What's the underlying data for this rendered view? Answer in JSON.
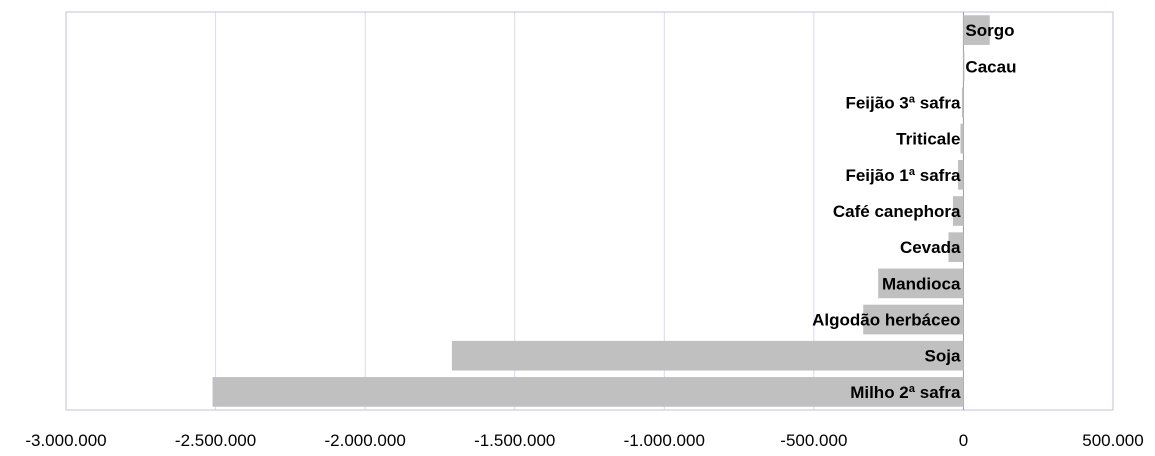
{
  "chart_data": {
    "type": "bar",
    "orientation": "horizontal",
    "title": "",
    "xlabel": "",
    "ylabel": "",
    "categories": [
      "Sorgo",
      "Cacau",
      "Feijão 3ª safra",
      "Triticale",
      "Feijão 1ª safra",
      "Café canephora",
      "Cevada",
      "Mandioca",
      "Algodão herbáceo",
      "Soja",
      "Milho 2ª safra"
    ],
    "values": [
      88000,
      2000,
      -5000,
      -10000,
      -18000,
      -35000,
      -50000,
      -285000,
      -335000,
      -1710000,
      -2510000
    ],
    "xlim": [
      -3000000,
      500000
    ],
    "x_ticks": [
      -3000000,
      -2500000,
      -2000000,
      -1500000,
      -1000000,
      -500000,
      0,
      500000
    ],
    "x_tick_labels": [
      "-3.000.000",
      "-2.500.000",
      "-2.000.000",
      "-1.500.000",
      "-1.000.000",
      "-500.000",
      "0",
      "500.000"
    ],
    "grid": "vertical",
    "legend": "none",
    "colors": {
      "bar": "#c0c0c0",
      "gridline": "#d9d9f2",
      "axis": "#c0c0e0"
    }
  }
}
